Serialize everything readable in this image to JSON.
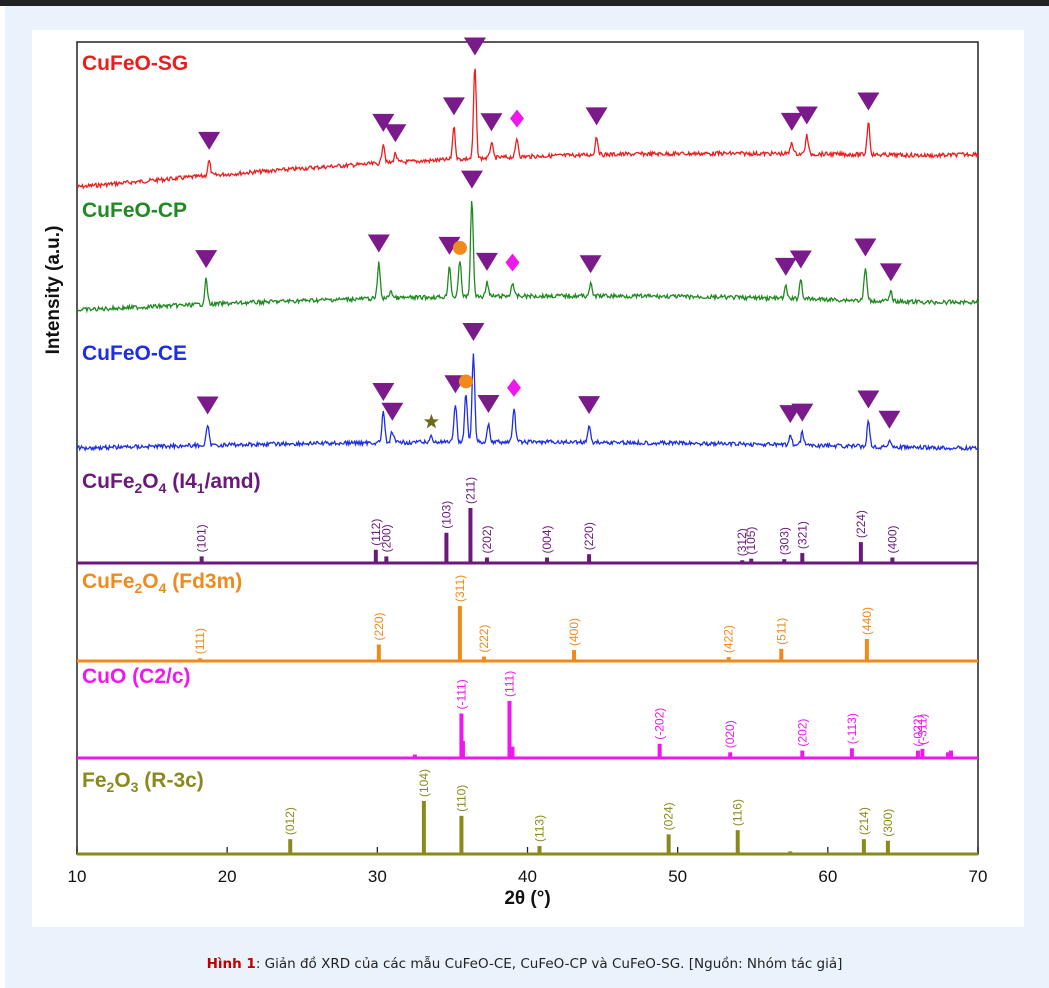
{
  "caption": {
    "lead": "Hình 1",
    "text": ": Giản đồ XRD của các mẫu CuFeO-CE, CuFeO-CP và CuFeO-SG. [Nguồn: Nhóm tác giả]"
  },
  "chart_data": {
    "type": "line",
    "xlabel": "2θ (°)",
    "ylabel": "Intensity (a.u.)",
    "xlim": [
      10,
      70
    ],
    "xticks": [
      10,
      20,
      30,
      40,
      50,
      60,
      70
    ],
    "colors": {
      "sg": "#ee1c1c",
      "cp": "#1f8a1f",
      "ce": "#1e2ee6",
      "tet": "#6b1a7b",
      "cub": "#f08a1c",
      "cuo": "#ee17ee",
      "fe2o3": "#8a8a1c",
      "marker_triangle": "#7b1a8a",
      "marker_circle": "#f08a1c",
      "marker_diamond": "#ee17ee",
      "marker_star": "#6b6b1c"
    },
    "patterns": [
      {
        "id": "sg",
        "label": "CuFeO-SG",
        "peaks": [
          [
            18.8,
            0.16
          ],
          [
            30.4,
            0.22
          ],
          [
            31.2,
            0.1
          ],
          [
            35.1,
            0.36
          ],
          [
            36.5,
            1.0
          ],
          [
            37.6,
            0.17
          ],
          [
            39.3,
            0.2
          ],
          [
            44.6,
            0.2
          ],
          [
            57.6,
            0.13
          ],
          [
            58.6,
            0.2
          ],
          [
            62.7,
            0.36
          ]
        ],
        "triangles": [
          18.8,
          30.4,
          31.2,
          35.1,
          36.5,
          37.6,
          44.6,
          57.6,
          58.6,
          62.7
        ],
        "circles": [],
        "diamonds": [
          39.3
        ],
        "stars": []
      },
      {
        "id": "cp",
        "label": "CuFeO-CP",
        "peaks": [
          [
            18.6,
            0.26
          ],
          [
            30.1,
            0.36
          ],
          [
            30.9,
            0.08
          ],
          [
            34.8,
            0.32
          ],
          [
            35.5,
            0.38
          ],
          [
            36.3,
            1.0
          ],
          [
            37.3,
            0.15
          ],
          [
            39.0,
            0.14
          ],
          [
            44.2,
            0.12
          ],
          [
            57.2,
            0.12
          ],
          [
            58.2,
            0.2
          ],
          [
            62.5,
            0.34
          ],
          [
            64.2,
            0.09
          ]
        ],
        "triangles": [
          18.6,
          30.1,
          34.8,
          36.3,
          37.3,
          44.2,
          57.2,
          58.2,
          62.5,
          64.2
        ],
        "circles": [
          35.5
        ],
        "diamonds": [
          39.0
        ],
        "stars": []
      },
      {
        "id": "ce",
        "label": "CuFeO-CE",
        "peaks": [
          [
            18.7,
            0.22
          ],
          [
            30.4,
            0.34
          ],
          [
            31.0,
            0.12
          ],
          [
            33.6,
            0.07
          ],
          [
            35.2,
            0.42
          ],
          [
            35.9,
            0.54
          ],
          [
            36.4,
            1.0
          ],
          [
            37.4,
            0.2
          ],
          [
            39.1,
            0.38
          ],
          [
            44.1,
            0.19
          ],
          [
            57.5,
            0.12
          ],
          [
            58.3,
            0.14
          ],
          [
            62.7,
            0.3
          ],
          [
            64.1,
            0.08
          ]
        ],
        "triangles": [
          18.7,
          30.4,
          31.0,
          35.2,
          36.4,
          37.4,
          44.1,
          57.5,
          58.3,
          62.7,
          64.1
        ],
        "circles": [
          35.9
        ],
        "diamonds": [
          39.1
        ],
        "stars": [
          33.6
        ]
      }
    ],
    "references": [
      {
        "id": "tet",
        "label_pre": "CuFe",
        "label_sub": "2",
        "label_mid": "O",
        "label_sub2": "4",
        "label_post": " (I4",
        "label_sub3": "1",
        "label_end": "/amd)",
        "lines": [
          {
            "x": 18.3,
            "h": 0.12,
            "hkl": "(101)"
          },
          {
            "x": 29.9,
            "h": 0.24,
            "hkl": "(112)"
          },
          {
            "x": 30.6,
            "h": 0.12,
            "hkl": "(200)"
          },
          {
            "x": 34.6,
            "h": 0.55,
            "hkl": "(103)"
          },
          {
            "x": 36.2,
            "h": 1.0,
            "hkl": "(211)"
          },
          {
            "x": 37.3,
            "h": 0.1,
            "hkl": "(202)"
          },
          {
            "x": 41.3,
            "h": 0.1,
            "hkl": "(004)"
          },
          {
            "x": 44.1,
            "h": 0.16,
            "hkl": "(220)"
          },
          {
            "x": 54.3,
            "h": 0.05,
            "hkl": "(312)"
          },
          {
            "x": 54.9,
            "h": 0.08,
            "hkl": "(105)"
          },
          {
            "x": 57.1,
            "h": 0.07,
            "hkl": "(303)"
          },
          {
            "x": 58.3,
            "h": 0.18,
            "hkl": "(321)"
          },
          {
            "x": 62.2,
            "h": 0.38,
            "hkl": "(224)"
          },
          {
            "x": 64.3,
            "h": 0.1,
            "hkl": "(400)"
          }
        ]
      },
      {
        "id": "cub",
        "label_pre": "CuFe",
        "label_sub": "2",
        "label_mid": "O",
        "label_sub2": "4",
        "label_post": " (Fd3m)",
        "label_sub3": "",
        "label_end": "",
        "lines": [
          {
            "x": 18.2,
            "h": 0.05,
            "hkl": "(111)"
          },
          {
            "x": 30.1,
            "h": 0.3,
            "hkl": "(220)"
          },
          {
            "x": 35.5,
            "h": 1.0,
            "hkl": "(311)"
          },
          {
            "x": 37.1,
            "h": 0.08,
            "hkl": "(222)"
          },
          {
            "x": 43.1,
            "h": 0.2,
            "hkl": "(400)"
          },
          {
            "x": 53.4,
            "h": 0.07,
            "hkl": "(422)"
          },
          {
            "x": 56.9,
            "h": 0.22,
            "hkl": "(511)"
          },
          {
            "x": 62.6,
            "h": 0.4,
            "hkl": "(440)"
          }
        ]
      },
      {
        "id": "cuo",
        "label_pre": "CuO (C2/c)",
        "label_sub": "",
        "label_mid": "",
        "label_sub2": "",
        "label_post": "",
        "label_sub3": "",
        "label_end": "",
        "lines": [
          {
            "x": 32.5,
            "h": 0.06,
            "hkl": ""
          },
          {
            "x": 35.6,
            "h": 0.78,
            "hkl": "(-111)"
          },
          {
            "x": 35.7,
            "h": 0.3,
            "hkl": ""
          },
          {
            "x": 38.8,
            "h": 1.0,
            "hkl": "(111)"
          },
          {
            "x": 39.0,
            "h": 0.2,
            "hkl": ""
          },
          {
            "x": 48.8,
            "h": 0.25,
            "hkl": "(-202)"
          },
          {
            "x": 53.5,
            "h": 0.1,
            "hkl": "(020)"
          },
          {
            "x": 58.3,
            "h": 0.13,
            "hkl": "(202)"
          },
          {
            "x": 61.6,
            "h": 0.17,
            "hkl": "(-113)"
          },
          {
            "x": 66.0,
            "h": 0.13,
            "hkl": "(-022)"
          },
          {
            "x": 66.3,
            "h": 0.16,
            "hkl": "(-311)"
          },
          {
            "x": 68.0,
            "h": 0.1,
            "hkl": ""
          },
          {
            "x": 68.2,
            "h": 0.13,
            "hkl": ""
          }
        ]
      },
      {
        "id": "fe2o3",
        "label_pre": "Fe",
        "label_sub": "2",
        "label_mid": "O",
        "label_sub2": "3",
        "label_post": " (R-3c)",
        "label_sub3": "",
        "label_end": "",
        "lines": [
          {
            "x": 24.2,
            "h": 0.28,
            "hkl": "(012)"
          },
          {
            "x": 33.1,
            "h": 1.0,
            "hkl": "(104)"
          },
          {
            "x": 35.6,
            "h": 0.72,
            "hkl": "(110)"
          },
          {
            "x": 40.8,
            "h": 0.15,
            "hkl": "(113)"
          },
          {
            "x": 49.4,
            "h": 0.37,
            "hkl": "(024)"
          },
          {
            "x": 54.0,
            "h": 0.45,
            "hkl": "(116)"
          },
          {
            "x": 57.5,
            "h": 0.05,
            "hkl": ""
          },
          {
            "x": 62.4,
            "h": 0.28,
            "hkl": "(214)"
          },
          {
            "x": 64.0,
            "h": 0.25,
            "hkl": "(300)"
          }
        ]
      }
    ]
  }
}
